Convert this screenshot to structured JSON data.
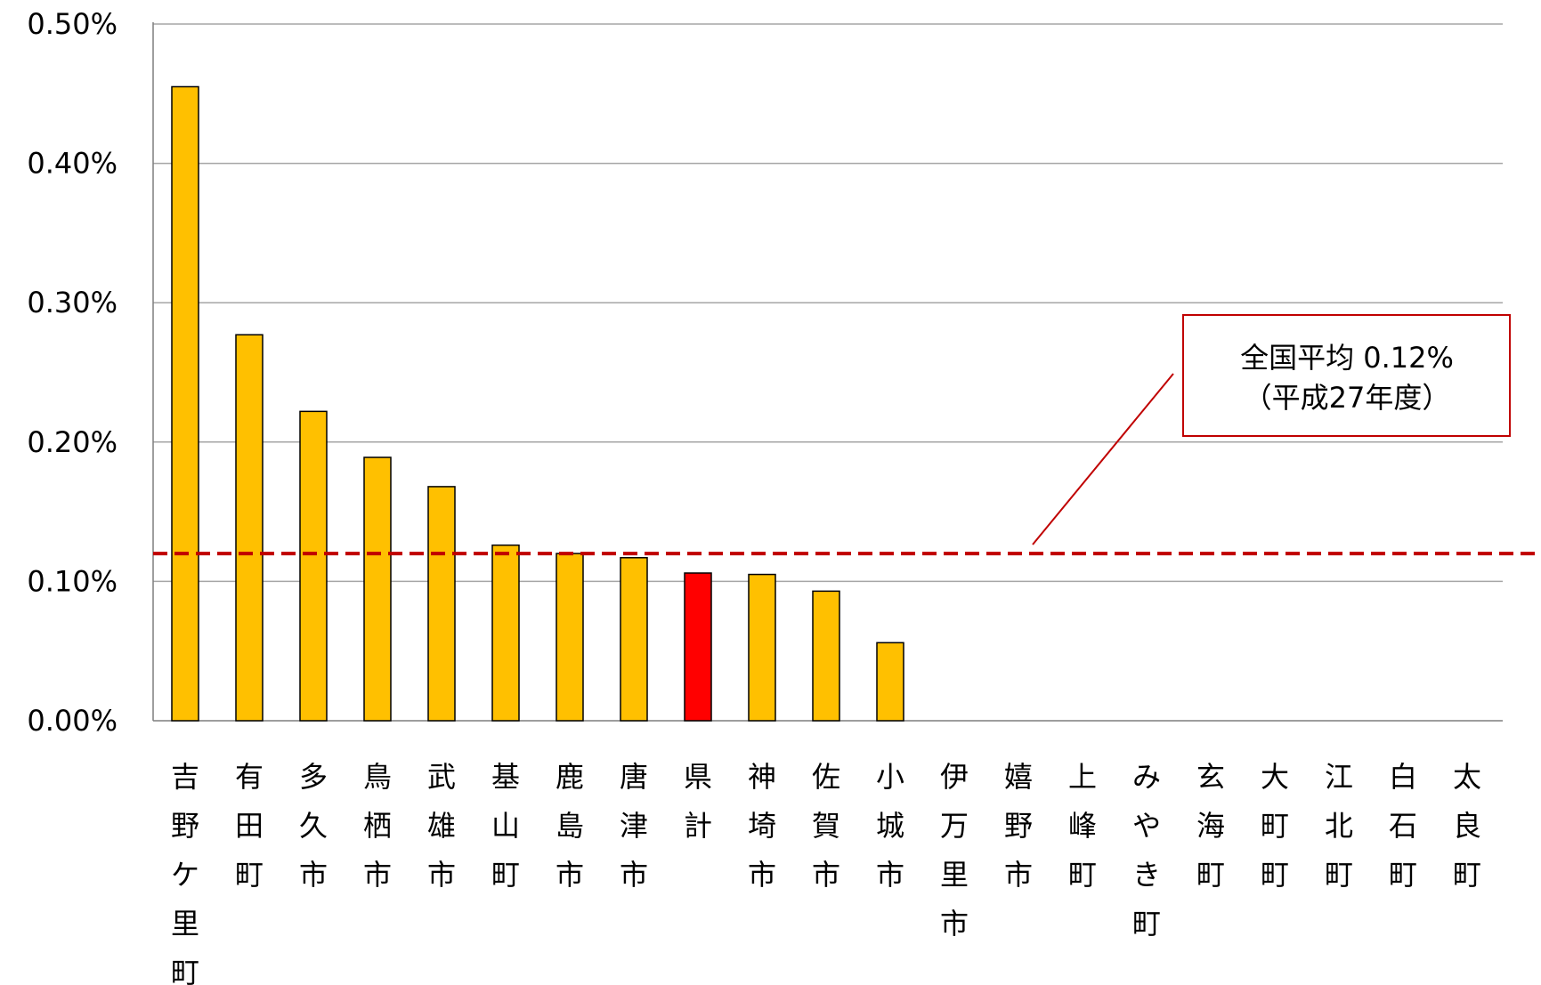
{
  "chart_data": {
    "type": "bar",
    "categories": [
      "吉野ケ里町",
      "有田町",
      "多久市",
      "鳥栖市",
      "武雄市",
      "基山町",
      "鹿島市",
      "唐津市",
      "県計",
      "神埼市",
      "佐賀市",
      "小城市",
      "伊万里市",
      "嬉野市",
      "上峰町",
      "みやき町",
      "玄海町",
      "大町町",
      "江北町",
      "白石町",
      "太良町"
    ],
    "values": [
      0.455,
      0.277,
      0.222,
      0.189,
      0.168,
      0.126,
      0.12,
      0.117,
      0.106,
      0.105,
      0.093,
      0.056,
      0,
      0,
      0,
      0,
      0,
      0,
      0,
      0,
      0
    ],
    "highlight_category": "県計",
    "colors": {
      "bar": "#FFC000",
      "highlight": "#FF0000",
      "reference": "#C00000",
      "grid": "#A6A6A6"
    },
    "ylim": [
      0,
      0.5
    ],
    "yticks": [
      0,
      0.1,
      0.2,
      0.3,
      0.4,
      0.5
    ],
    "ytick_labels": [
      "0.00%",
      "0.10%",
      "0.20%",
      "0.30%",
      "0.40%",
      "0.50%"
    ],
    "grid": true,
    "reference_line": {
      "value": 0.12,
      "style": "dashed"
    },
    "annotation": {
      "line1": "全国平均 0.12%",
      "line2": "（平成27年度）"
    }
  }
}
